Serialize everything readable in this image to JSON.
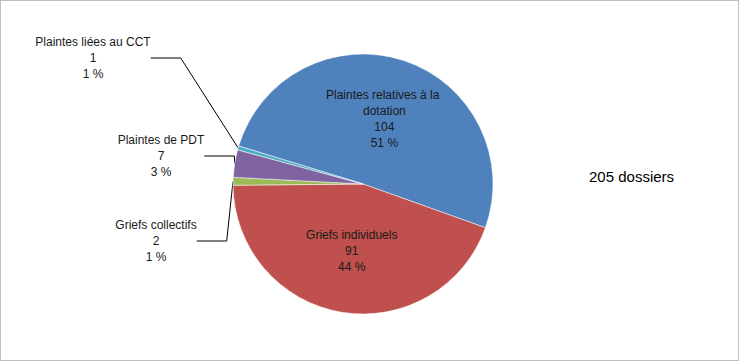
{
  "chart_data": {
    "type": "pie",
    "categories": [
      "Plaintes relatives à la dotation",
      "Griefs individuels",
      "Griefs collectifs",
      "Plaintes de PDT",
      "Plaintes liées au CCT"
    ],
    "values": [
      104,
      91,
      2,
      7,
      1
    ],
    "percent_labels": [
      "51 %",
      "44 %",
      "1 %",
      "3 %",
      "1 %"
    ],
    "colors": [
      "#4F81BD",
      "#C0504D",
      "#9BBB59",
      "#8064A2",
      "#4BACC6"
    ],
    "annotation": "205 dossiers",
    "data_labels": true
  }
}
